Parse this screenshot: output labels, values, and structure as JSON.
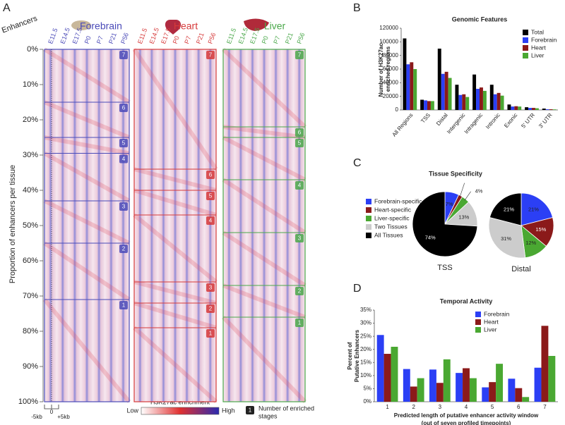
{
  "panel_labels": [
    "A",
    "B",
    "C",
    "D"
  ],
  "panel_a": {
    "corner_label": "Enhancers",
    "ylabel": "Proportion of enhancers per tissue",
    "ylim": [
      0,
      100
    ],
    "yticks": [
      {
        "value": 0,
        "label": "0%"
      },
      {
        "value": 10,
        "label": "10%"
      },
      {
        "value": 20,
        "label": "20%"
      },
      {
        "value": 30,
        "label": "30%"
      },
      {
        "value": 40,
        "label": "40%"
      },
      {
        "value": 50,
        "label": "50%"
      },
      {
        "value": 60,
        "label": "60%"
      },
      {
        "value": 70,
        "label": "70%"
      },
      {
        "value": 80,
        "label": "80%"
      },
      {
        "value": 90,
        "label": "90%"
      },
      {
        "value": 100,
        "label": "100%"
      }
    ],
    "stages": [
      "E11.5",
      "E14.5",
      "E17.5",
      "P0",
      "P7",
      "P21",
      "P56"
    ],
    "tissues": [
      {
        "name": "Forebrain",
        "color": "#4a4ab8",
        "boundaries": [
          0,
          15,
          25,
          29.5,
          43,
          55,
          71,
          100
        ],
        "badges": [
          "7",
          "6",
          "5",
          "4",
          "3",
          "2",
          "1"
        ]
      },
      {
        "name": "Heart",
        "color": "#d63a3a",
        "boundaries": [
          0,
          34,
          40,
          47,
          66,
          72,
          79,
          100
        ],
        "badges": [
          "7",
          "6",
          "5",
          "4",
          "3",
          "2",
          "1"
        ]
      },
      {
        "name": "Liver",
        "color": "#4aa84a",
        "boundaries": [
          0,
          22,
          25,
          37,
          52,
          67,
          76,
          100
        ],
        "badges": [
          "7",
          "6",
          "5",
          "4",
          "3",
          "2",
          "1"
        ]
      }
    ],
    "scale_labels": [
      "-5kb",
      "0",
      "+5kb"
    ],
    "colorbar_title": "H3K27ac enrichment",
    "colorbar_low": "Low",
    "colorbar_high": "High",
    "badge_example": "1",
    "badge_caption": [
      "Number of enriched",
      "stages"
    ]
  },
  "chart_data": [
    {
      "type": "bar",
      "title": "Genomic Features",
      "ylabel": [
        "Number of H3K27ac-",
        "enriched regions"
      ],
      "categories": [
        "All Regions",
        "TSS",
        "Distal",
        "Intergenic",
        "Intragenic",
        "Intronic",
        "Exonic",
        "5' UTR",
        "3' UTR"
      ],
      "series": [
        {
          "name": "Total",
          "color": "#000000",
          "values": [
            105000,
            15000,
            90000,
            37000,
            52000,
            37000,
            8000,
            4000,
            2000
          ]
        },
        {
          "name": "Forebrain",
          "color": "#2b3ff5",
          "values": [
            67000,
            14000,
            53000,
            22000,
            31000,
            23000,
            5000,
            3000,
            1000
          ]
        },
        {
          "name": "Heart",
          "color": "#8b1a1a",
          "values": [
            70000,
            13000,
            56000,
            23000,
            33000,
            25000,
            5500,
            3000,
            1000
          ]
        },
        {
          "name": "Liver",
          "color": "#4aa832",
          "values": [
            60000,
            13000,
            47000,
            19000,
            28000,
            21000,
            5000,
            2500,
            800
          ]
        }
      ],
      "ylim": [
        0,
        120000
      ],
      "yticks": [
        0,
        20000,
        40000,
        60000,
        80000,
        100000,
        120000
      ],
      "legend": "upper right"
    },
    {
      "type": "pie",
      "title": "Tissue Specificity",
      "label": "TSS",
      "categories": [
        "Forebrain-specific",
        "Heart-specific",
        "Liver-specific",
        "Two Tissues",
        "All Tissues"
      ],
      "colors": [
        "#2b3ff5",
        "#8b1a1a",
        "#4aa832",
        "#cccccc",
        "#000000"
      ],
      "values": [
        7,
        2,
        4,
        13,
        74
      ],
      "value_labels": [
        "7%",
        "2%",
        "4%",
        "13%",
        "74%"
      ],
      "legend": "left"
    },
    {
      "type": "pie",
      "label": "Distal",
      "categories": [
        "Forebrain-specific",
        "Heart-specific",
        "Liver-specific",
        "Two Tissues",
        "All Tissues"
      ],
      "colors": [
        "#2b3ff5",
        "#8b1a1a",
        "#4aa832",
        "#cccccc",
        "#000000"
      ],
      "values": [
        21,
        15,
        12,
        31,
        21
      ],
      "value_labels": [
        "21%",
        "15%",
        "12%",
        "31%",
        "21%"
      ]
    },
    {
      "type": "bar",
      "title": "Temporal Activity",
      "ylabel": [
        "Percent of",
        "Putative Enhancers"
      ],
      "xlabel": [
        "Predicted length of putative enhancer activity window",
        "(out of seven profiled timepoints)"
      ],
      "categories": [
        "1",
        "2",
        "3",
        "4",
        "5",
        "6",
        "7"
      ],
      "series": [
        {
          "name": "Forebrain",
          "color": "#2b3ff5",
          "values": [
            25.5,
            12.5,
            12.3,
            11,
            5.5,
            8.8,
            13
          ]
        },
        {
          "name": "Heart",
          "color": "#8b1a1a",
          "values": [
            18.3,
            5.8,
            7.2,
            12.8,
            7.5,
            5.2,
            29
          ]
        },
        {
          "name": "Liver",
          "color": "#4aa832",
          "values": [
            21,
            9,
            16.2,
            9,
            14.5,
            1.8,
            17.5
          ]
        }
      ],
      "ylim": [
        0,
        35
      ],
      "yticks": [
        {
          "value": 0,
          "label": "0%"
        },
        {
          "value": 5,
          "label": "5%"
        },
        {
          "value": 10,
          "label": "10%"
        },
        {
          "value": 15,
          "label": "15%"
        },
        {
          "value": 20,
          "label": "20%"
        },
        {
          "value": 25,
          "label": "25%"
        },
        {
          "value": 30,
          "label": "30%"
        },
        {
          "value": 35,
          "label": "35%"
        }
      ],
      "legend": "upper center"
    }
  ]
}
